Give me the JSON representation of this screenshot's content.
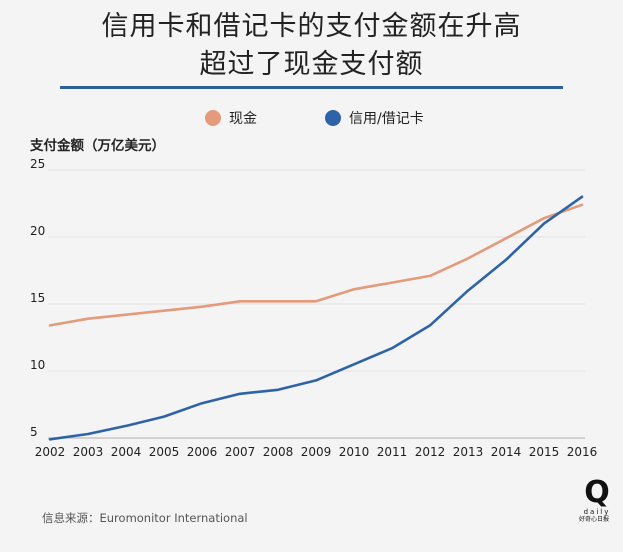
{
  "title": {
    "line1": "信用卡和借记卡的支付金额在升高",
    "line2": "超过了现金支付额"
  },
  "colors": {
    "cash": "#e39b7b",
    "card": "#2e63a8",
    "title_rule": "#2d5f9a"
  },
  "source": "信息来源：Euromonitor International",
  "logo": {
    "letter": "Q",
    "word": "daily",
    "sub": "好奇心日报"
  },
  "chart_data": {
    "type": "line",
    "title": "信用卡和借记卡的支付金额在升高超过了现金支付额",
    "ylabel": "支付金额（万亿美元）",
    "xlabel": "",
    "x": [
      "2002",
      "2003",
      "2004",
      "2005",
      "2006",
      "2007",
      "2008",
      "2009",
      "2010",
      "2011",
      "2012",
      "2013",
      "2014",
      "2015",
      "2016"
    ],
    "ylim": [
      5,
      25
    ],
    "yticks": [
      5,
      10,
      15,
      20,
      25
    ],
    "grid": "horizontal",
    "legend_position": "top",
    "series": [
      {
        "name": "现金",
        "color": "#e39b7b",
        "values": [
          13.4,
          13.9,
          14.2,
          14.5,
          14.8,
          15.2,
          15.2,
          15.2,
          16.1,
          16.6,
          17.1,
          18.4,
          19.9,
          21.4,
          22.4
        ]
      },
      {
        "name": "信用/借记卡",
        "color": "#2e63a8",
        "values": [
          4.9,
          5.3,
          5.9,
          6.6,
          7.6,
          8.3,
          8.6,
          9.3,
          10.5,
          11.7,
          13.4,
          16.0,
          18.3,
          21.0,
          23.0
        ]
      }
    ]
  }
}
